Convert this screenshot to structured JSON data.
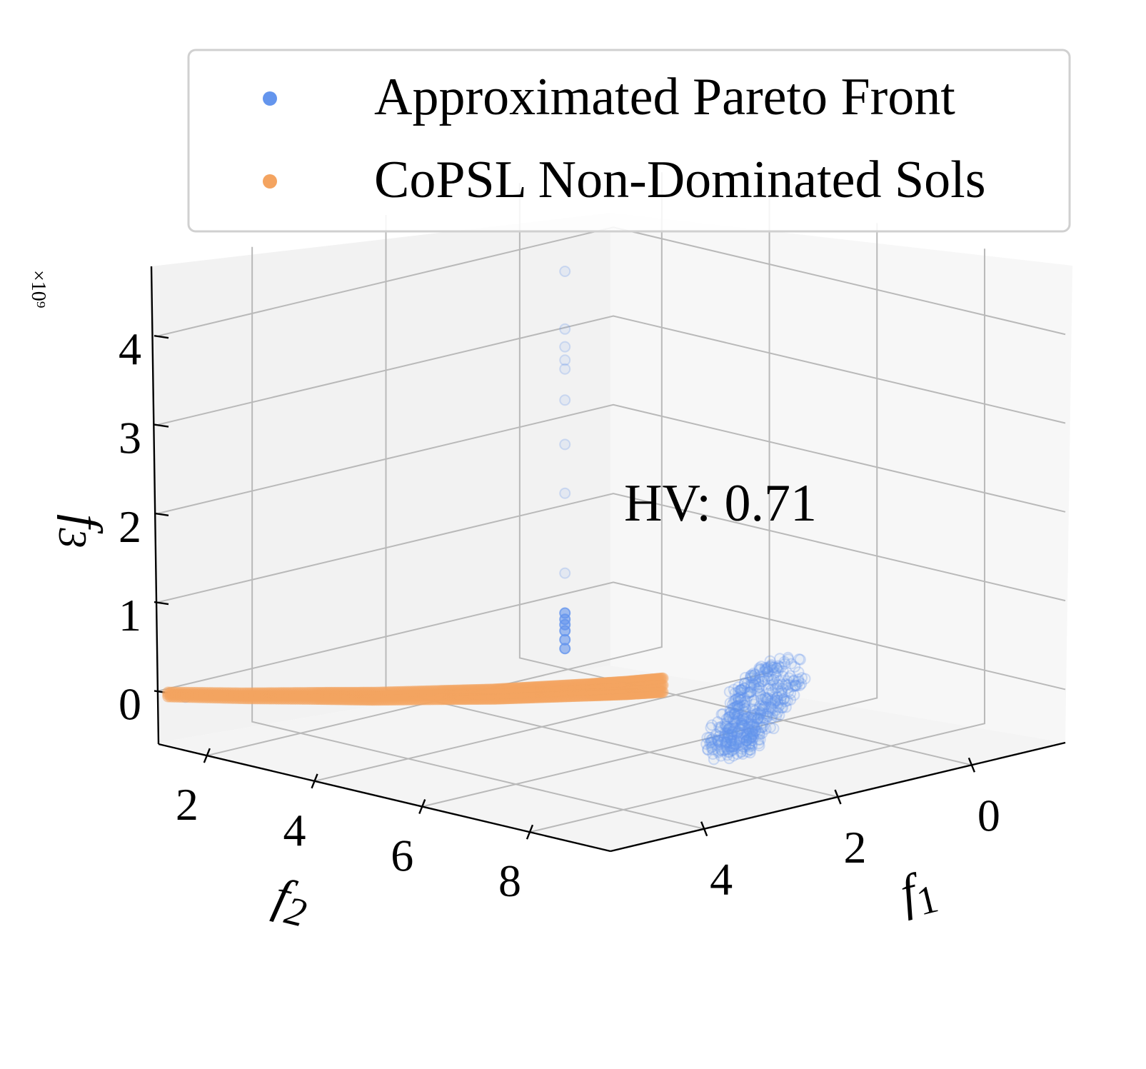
{
  "chart_data": {
    "type": "scatter",
    "projection": "3d",
    "legend": {
      "placement": "top-right",
      "entries": [
        {
          "label": "Approximated Pareto Front",
          "color": "#6495ED"
        },
        {
          "label": "CoPSL Non-Dominated Sols",
          "color": "#F4A460"
        }
      ]
    },
    "annotation": "HV: 0.71",
    "x_axis": {
      "label": "f",
      "label_sub": "1",
      "ticks": [
        "0",
        "2",
        "4"
      ],
      "tick_values": [
        0,
        2,
        4
      ],
      "lim": [
        -1.4,
        5.4
      ]
    },
    "y_axis": {
      "label": "f",
      "label_sub": "2",
      "ticks": [
        "2",
        "4",
        "6",
        "8"
      ],
      "tick_values": [
        2,
        4,
        6,
        8
      ],
      "lim": [
        1.1,
        9.5
      ]
    },
    "z_axis": {
      "label": "f",
      "label_sub": "3",
      "ticks": [
        "0",
        "1",
        "2",
        "3",
        "4"
      ],
      "tick_values": [
        0,
        1,
        2,
        3,
        4
      ],
      "lim": [
        -0.6,
        4.75
      ],
      "scale_note": "×10⁹"
    },
    "grid": true,
    "series": [
      {
        "name": "Approximated Pareto Front",
        "color": "#6495ED",
        "marker": "hollow-circle",
        "band_points": [
          {
            "f1": 0.0,
            "f2": 6.0,
            "f3": 0.03
          },
          {
            "f1": 1.0,
            "f2": 6.6,
            "f3": 0.02
          },
          {
            "f1": 2.0,
            "f2": 7.6,
            "f3": 0.02
          },
          {
            "f1": 2.7,
            "f2": 8.3,
            "f3": 0.0
          },
          {
            "f1": 3.3,
            "f2": 9.0,
            "f3": 0.0
          },
          {
            "f1": 0.5,
            "f2": 6.8,
            "f3": 0.05
          },
          {
            "f1": 1.5,
            "f2": 7.6,
            "f3": 0.04
          },
          {
            "f1": 2.3,
            "f2": 8.3,
            "f3": 0.02
          },
          {
            "f1": 3.0,
            "f2": 9.0,
            "f3": 0.01
          }
        ],
        "vertical_points": [
          {
            "f1": 2.3,
            "f2": 4.8,
            "f3": 0.45
          },
          {
            "f1": 2.3,
            "f2": 4.8,
            "f3": 0.55
          },
          {
            "f1": 2.3,
            "f2": 4.8,
            "f3": 0.65
          },
          {
            "f1": 2.3,
            "f2": 4.8,
            "f3": 0.72
          },
          {
            "f1": 2.3,
            "f2": 4.8,
            "f3": 0.78
          },
          {
            "f1": 2.3,
            "f2": 4.8,
            "f3": 0.85
          },
          {
            "f1": 2.3,
            "f2": 4.8,
            "f3": 1.3
          },
          {
            "f1": 2.3,
            "f2": 4.8,
            "f3": 2.2
          },
          {
            "f1": 2.3,
            "f2": 4.8,
            "f3": 2.75
          },
          {
            "f1": 2.3,
            "f2": 4.8,
            "f3": 3.25
          },
          {
            "f1": 2.3,
            "f2": 4.8,
            "f3": 3.6
          },
          {
            "f1": 2.3,
            "f2": 4.8,
            "f3": 3.7
          },
          {
            "f1": 2.3,
            "f2": 4.8,
            "f3": 3.85
          },
          {
            "f1": 2.3,
            "f2": 4.8,
            "f3": 4.05
          },
          {
            "f1": 2.3,
            "f2": 4.8,
            "f3": 4.7
          }
        ],
        "outlier_points": [
          {
            "f1": 5.4,
            "f2": 1.6,
            "f3": 0.0
          }
        ]
      },
      {
        "name": "CoPSL Non-Dominated Sols",
        "color": "#F4A460",
        "marker": "filled-circle",
        "curve_points": [
          {
            "f1": 5.5,
            "f2": 1.4,
            "f3": 0.02
          },
          {
            "f1": 5.0,
            "f2": 2.2,
            "f3": 0.03
          },
          {
            "f1": 4.5,
            "f2": 2.9,
            "f3": 0.04
          },
          {
            "f1": 4.1,
            "f2": 3.5,
            "f3": 0.05
          },
          {
            "f1": 3.6,
            "f2": 4.1,
            "f3": 0.06
          },
          {
            "f1": 3.2,
            "f2": 4.6,
            "f3": 0.07
          },
          {
            "f1": 2.8,
            "f2": 5.0,
            "f3": 0.08
          },
          {
            "f1": 2.4,
            "f2": 5.4,
            "f3": 0.09
          },
          {
            "f1": 2.1,
            "f2": 5.7,
            "f3": 0.1
          },
          {
            "f1": 1.8,
            "f2": 6.0,
            "f3": 0.12
          }
        ]
      }
    ]
  }
}
